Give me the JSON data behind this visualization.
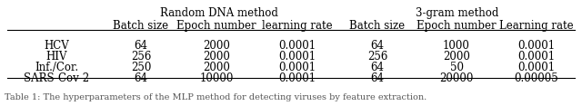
{
  "title_left": "Random DNA method",
  "title_right": "3-gram method",
  "col_headers": [
    "Batch size",
    "Epoch number",
    "learning rate",
    "Batch size",
    "Epoch number",
    "Learning rate"
  ],
  "row_labels": [
    "HCV",
    "HIV",
    "Inf./Cor.",
    "SARS-Cov-2"
  ],
  "table_data": [
    [
      "64",
      "2000",
      "0.0001",
      "64",
      "1000",
      "0.0001"
    ],
    [
      "256",
      "2000",
      "0.0001",
      "256",
      "2000",
      "0.0001"
    ],
    [
      "250",
      "2000",
      "0.0001",
      "64",
      "50",
      "0.0001"
    ],
    [
      "64",
      "10000",
      "0.0001",
      "64",
      "20000",
      "0.00005"
    ]
  ],
  "caption": "Table 1: The hyperparameters of the MLP method for detecting viruses by feature extraction.",
  "bg_color": "#ffffff",
  "text_color": "#000000",
  "font_size": 8.5,
  "caption_font_size": 7.0
}
